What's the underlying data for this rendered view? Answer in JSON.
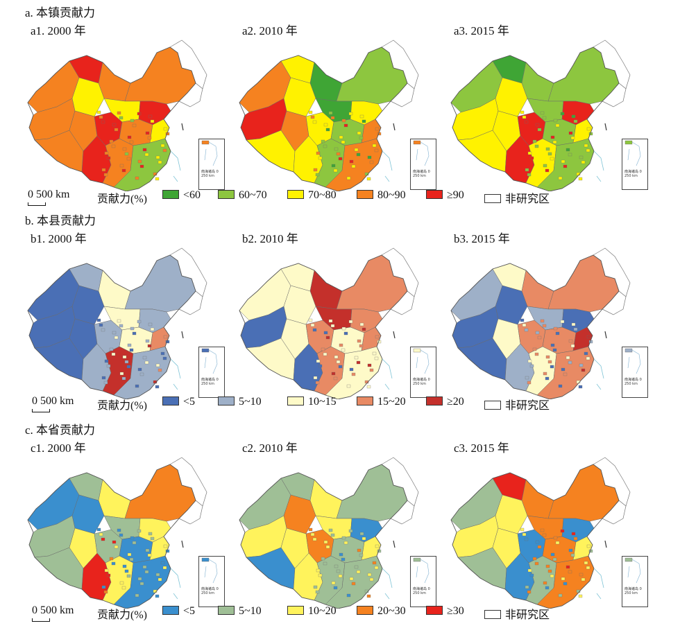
{
  "figure": {
    "sections": [
      {
        "id": "a",
        "title": "a. 本镇贡献力",
        "panels": [
          {
            "label": "a1. 2000 年",
            "colors": [
              "#f58220",
              "#e8231c",
              "#f58220",
              "#fff200",
              "#f58220",
              "#f58220",
              "#fff200",
              "#e8231c",
              "#f58220",
              "#e8231c",
              "#f58220",
              "#fff200",
              "#f58220",
              "#e8231c",
              "#f58220",
              "#8dc63f"
            ]
          },
          {
            "label": "a2. 2010 年",
            "colors": [
              "#f58220",
              "#fff200",
              "#3fa535",
              "#fff200",
              "#e8231c",
              "#8dc63f",
              "#3fa535",
              "#fff200",
              "#f58220",
              "#fff200",
              "#8dc63f",
              "#f58220",
              "#fff200",
              "#fff200",
              "#8dc63f",
              "#f58220"
            ]
          },
          {
            "label": "a3. 2015 年",
            "colors": [
              "#8dc63f",
              "#3fa535",
              "#8dc63f",
              "#fff200",
              "#fff200",
              "#8dc63f",
              "#8dc63f",
              "#e8231c",
              "#fff200",
              "#e8231c",
              "#8dc63f",
              "#fff200",
              "#fff200",
              "#e8231c",
              "#fff200",
              "#8dc63f"
            ]
          }
        ],
        "legend": {
          "scale": "0 500 km",
          "title": "贡献力(%)",
          "items": [
            {
              "label": "<60",
              "color": "#3fa535"
            },
            {
              "label": "60~70",
              "color": "#8dc63f"
            },
            {
              "label": "70~80",
              "color": "#fff200"
            },
            {
              "label": "80~90",
              "color": "#f58220"
            },
            {
              "label": "≥90",
              "color": "#e8231c"
            },
            {
              "label": "非研究区",
              "color": "#ffffff"
            }
          ]
        }
      },
      {
        "id": "b",
        "title": "b. 本县贡献力",
        "panels": [
          {
            "label": "b1. 2000 年",
            "colors": [
              "#4a6fb5",
              "#9eb0c8",
              "#fefac8",
              "#4a6fb5",
              "#4a6fb5",
              "#9eb0c8",
              "#fefac8",
              "#9eb0c8",
              "#4a6fb5",
              "#9eb0c8",
              "#fefac8",
              "#e88a64",
              "#4a6fb5",
              "#9eb0c8",
              "#c4302b",
              "#9eb0c8"
            ]
          },
          {
            "label": "b2. 2010 年",
            "colors": [
              "#fefac8",
              "#fefac8",
              "#c4302b",
              "#fefac8",
              "#4a6fb5",
              "#e88a64",
              "#c4302b",
              "#e88a64",
              "#fefac8",
              "#e88a64",
              "#fefac8",
              "#e88a64",
              "#fefac8",
              "#4a6fb5",
              "#e88a64",
              "#fefac8"
            ]
          },
          {
            "label": "b3. 2015 年",
            "colors": [
              "#9eb0c8",
              "#fefac8",
              "#e88a64",
              "#4a6fb5",
              "#4a6fb5",
              "#e88a64",
              "#9eb0c8",
              "#4a6fb5",
              "#fefac8",
              "#e88a64",
              "#e88a64",
              "#c4302b",
              "#4a6fb5",
              "#9eb0c8",
              "#fefac8",
              "#e88a64"
            ]
          }
        ],
        "legend": {
          "scale": "0 500 km",
          "title": "贡献力(%)",
          "items": [
            {
              "label": "<5",
              "color": "#4a6fb5"
            },
            {
              "label": "5~10",
              "color": "#9eb0c8"
            },
            {
              "label": "10~15",
              "color": "#fefac8"
            },
            {
              "label": "15~20",
              "color": "#e88a64"
            },
            {
              "label": "≥20",
              "color": "#c4302b"
            },
            {
              "label": "非研究区",
              "color": "#ffffff"
            }
          ]
        }
      },
      {
        "id": "c",
        "title": "c. 本省贡献力",
        "panels": [
          {
            "label": "c1. 2000 年",
            "colors": [
              "#3a8fce",
              "#9fbf96",
              "#fff35c",
              "#3a8fce",
              "#9fbf96",
              "#f58220",
              "#9fbf96",
              "#fff35c",
              "#fff35c",
              "#9fbf96",
              "#3a8fce",
              "#fff35c",
              "#9fbf96",
              "#e8231c",
              "#fff35c",
              "#3a8fce"
            ]
          },
          {
            "label": "c2. 2010 年",
            "colors": [
              "#9fbf96",
              "#9fbf96",
              "#fff35c",
              "#f58220",
              "#fff35c",
              "#9fbf96",
              "#fff35c",
              "#3a8fce",
              "#fff35c",
              "#f58220",
              "#9fbf96",
              "#fff35c",
              "#3a8fce",
              "#fff35c",
              "#9fbf96",
              "#9fbf96"
            ]
          },
          {
            "label": "c3. 2015 年",
            "colors": [
              "#9fbf96",
              "#e8231c",
              "#f58220",
              "#fff35c",
              "#fff35c",
              "#f58220",
              "#f58220",
              "#3a8fce",
              "#fff35c",
              "#3a8fce",
              "#f58220",
              "#fff35c",
              "#9fbf96",
              "#3a8fce",
              "#9fbf96",
              "#f58220"
            ]
          }
        ],
        "legend": {
          "scale": "0 500 km",
          "title": "贡献力(%)",
          "items": [
            {
              "label": "<5",
              "color": "#3a8fce"
            },
            {
              "label": "5~10",
              "color": "#9fbf96"
            },
            {
              "label": "10~20",
              "color": "#fff35c"
            },
            {
              "label": "20~30",
              "color": "#f58220"
            },
            {
              "label": "≥30",
              "color": "#e8231c"
            },
            {
              "label": "非研究区",
              "color": "#ffffff"
            }
          ]
        }
      }
    ],
    "inset_label": "南海诸岛 0 250 km",
    "colors": {
      "non_study": "#ffffff",
      "outline": "#888888",
      "coast": "#7fc4d6"
    }
  }
}
